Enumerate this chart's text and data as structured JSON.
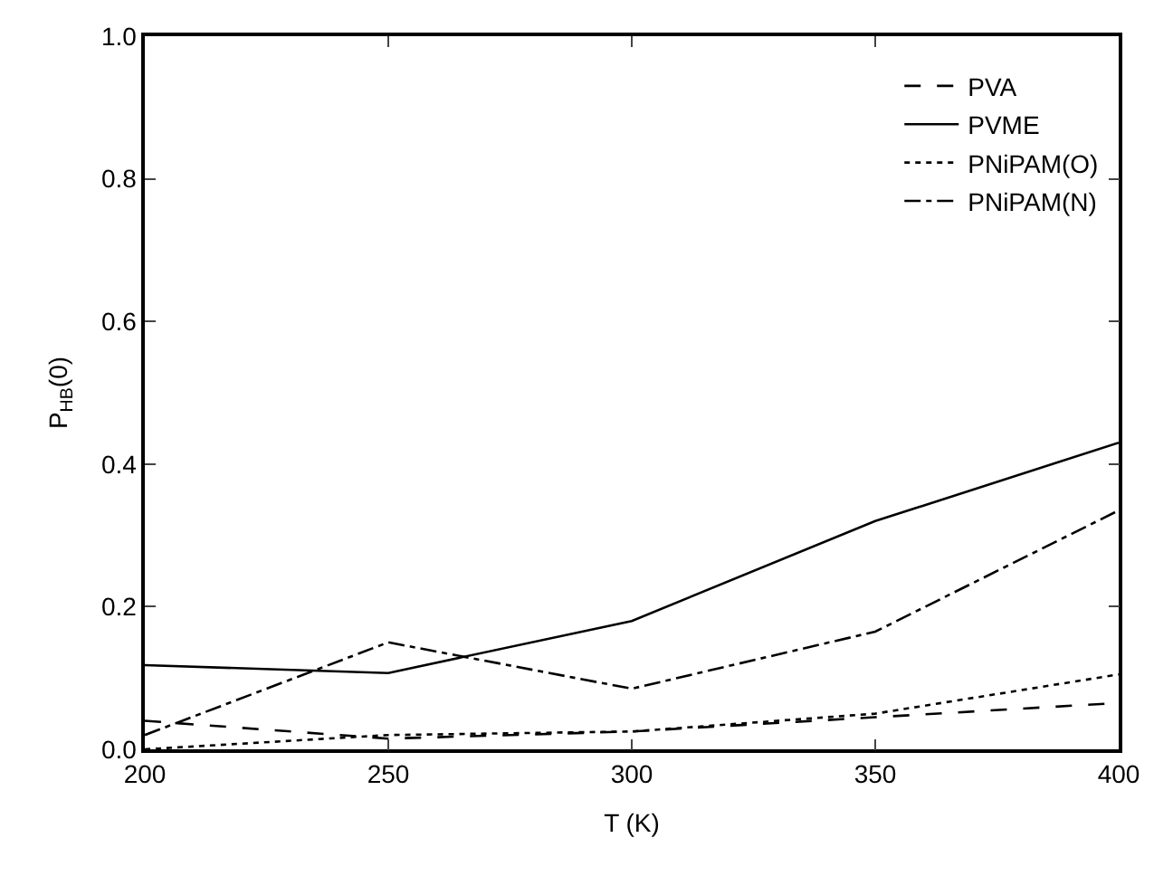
{
  "chart_data": {
    "type": "line",
    "xlabel": "T (K)",
    "ylabel": "P$_{HB}$(0)",
    "x": [
      200,
      250,
      300,
      350,
      400
    ],
    "series": [
      {
        "name": "PVA",
        "color": "#000000",
        "line_style": "dashed",
        "values": [
          0.04,
          0.015,
          0.025,
          0.045,
          0.065
        ]
      },
      {
        "name": "PVME",
        "color": "#000000",
        "line_style": "solid",
        "values": [
          0.118,
          0.107,
          0.18,
          0.32,
          0.43
        ]
      },
      {
        "name": "PNiPAM(O)",
        "color": "#000000",
        "line_style": "dotted",
        "values": [
          0.0,
          0.02,
          0.025,
          0.05,
          0.105
        ]
      },
      {
        "name": "PNiPAM(N)",
        "color": "#000000",
        "line_style": "dashdot",
        "values": [
          0.02,
          0.15,
          0.085,
          0.165,
          0.335
        ]
      }
    ],
    "xlim": [
      200,
      400
    ],
    "xticks": [
      200,
      250,
      300,
      350,
      400
    ],
    "ylim": [
      0,
      1
    ],
    "yticks": [
      {
        "value": 0,
        "label": "0.0"
      },
      {
        "value": 0.2,
        "label": "0.2"
      },
      {
        "value": 0.4,
        "label": "0.4"
      },
      {
        "value": 0.6,
        "label": "0.6"
      },
      {
        "value": 0.8,
        "label": "0.8"
      },
      {
        "value": 1,
        "label": "1.0"
      }
    ],
    "legend": "top right",
    "marker": "none"
  }
}
